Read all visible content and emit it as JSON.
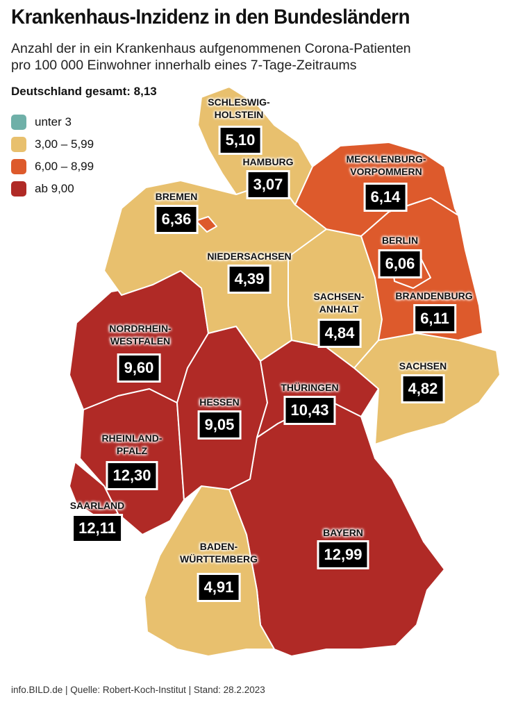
{
  "title": "Krankenhaus-Inzidenz in den Bundesländern",
  "subtitle_line1": "Anzahl der in ein Krankenhaus aufgenommenen Corona-Patienten",
  "subtitle_line2": "pro 100 000 Einwohner innerhalb eines 7-Tage-Zeitraums",
  "total": "Deutschland gesamt: 8,13",
  "colors": {
    "low": "#6fb0a8",
    "mid": "#e8c06e",
    "high": "#dd5a2c",
    "top": "#b02a26"
  },
  "legend": [
    {
      "label": "unter 3",
      "color": "#6fb0a8"
    },
    {
      "label": "3,00 – 5,99",
      "color": "#e8c06e"
    },
    {
      "label": "6,00 – 8,99",
      "color": "#dd5a2c"
    },
    {
      "label": "ab 9,00",
      "color": "#b02a26"
    }
  ],
  "states": {
    "schleswig_holstein": {
      "name": "SCHLESWIG-\nHOLSTEIN",
      "value": "5,10"
    },
    "hamburg": {
      "name": "HAMBURG",
      "value": "3,07"
    },
    "mecklenburg_vorpommern": {
      "name": "MECKLENBURG-\nVORPOMMERN",
      "value": "6,14"
    },
    "bremen": {
      "name": "BREMEN",
      "value": "6,36"
    },
    "niedersachsen": {
      "name": "NIEDERSACHSEN",
      "value": "4,39"
    },
    "berlin": {
      "name": "BERLIN",
      "value": "6,06"
    },
    "brandenburg": {
      "name": "BRANDENBURG",
      "value": "6,11"
    },
    "sachsen_anhalt": {
      "name": "SACHSEN-\nANHALT",
      "value": "4,84"
    },
    "nordrhein_westfalen": {
      "name": "NORDRHEIN-\nWESTFALEN",
      "value": "9,60"
    },
    "sachsen": {
      "name": "SACHSEN",
      "value": "4,82"
    },
    "thueringen": {
      "name": "THÜRINGEN",
      "value": "10,43"
    },
    "hessen": {
      "name": "HESSEN",
      "value": "9,05"
    },
    "rheinland_pfalz": {
      "name": "RHEINLAND-\nPFALZ",
      "value": "12,30"
    },
    "saarland": {
      "name": "SAARLAND",
      "value": "12,11"
    },
    "bayern": {
      "name": "BAYERN",
      "value": "12,99"
    },
    "baden_wuerttemberg": {
      "name": "BADEN-\nWÜRTTEMBERG",
      "value": "4,91"
    }
  },
  "footer": "info.BILD.de | Quelle: Robert-Koch-Institut | Stand: 28.2.2023"
}
